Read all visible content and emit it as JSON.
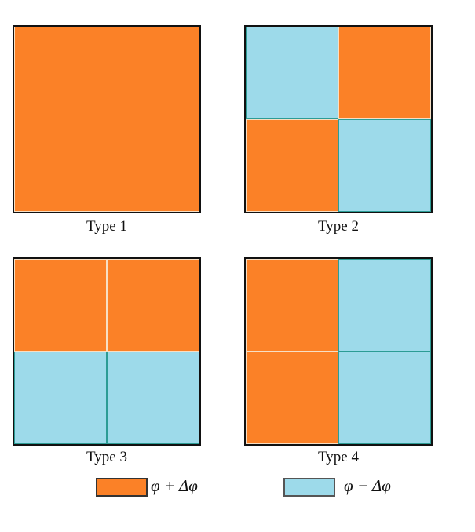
{
  "colors": {
    "plus": "#FB8127",
    "minus": "#9DDAEA",
    "plus_edge": "#F7DFC4",
    "minus_edge": "#2C9C95"
  },
  "panels": [
    {
      "caption": "Type 1",
      "grid": "1x1",
      "cells": [
        "plus"
      ]
    },
    {
      "caption": "Type 2",
      "grid": "2x2",
      "cells": [
        "minus",
        "plus",
        "plus",
        "minus"
      ]
    },
    {
      "caption": "Type 3",
      "grid": "2x2",
      "cells": [
        "plus",
        "plus",
        "minus",
        "minus"
      ]
    },
    {
      "caption": "Type 4",
      "grid": "2x2",
      "cells": [
        "plus",
        "minus",
        "plus",
        "minus"
      ]
    }
  ],
  "legend": {
    "plus_label": "φ + Δφ",
    "minus_label": "φ − Δφ"
  }
}
